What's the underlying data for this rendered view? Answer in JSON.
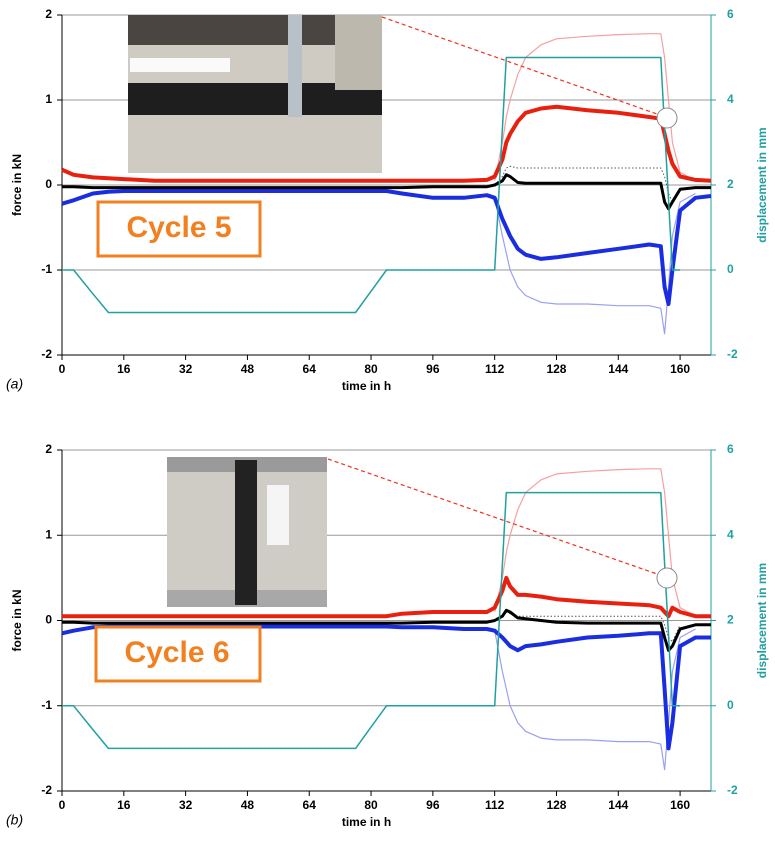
{
  "chart_data": [
    {
      "type": "line",
      "panel_label": "(a)",
      "annotation": "Cycle 5",
      "xlabel": "time in h",
      "ylabel": "force in kN",
      "y2label": "displacement in mm",
      "xlim": [
        0,
        168
      ],
      "xticks": [
        0,
        16,
        32,
        48,
        64,
        80,
        96,
        112,
        128,
        144,
        160
      ],
      "ylim": [
        -2,
        2
      ],
      "yticks": [
        -2,
        -1,
        0,
        1,
        2
      ],
      "y2lim": [
        -2,
        6
      ],
      "y2ticks": [
        -2,
        0,
        2,
        4,
        6
      ],
      "grid": true,
      "y2color": "#20a0a0",
      "x": [
        0,
        3,
        8,
        12,
        16,
        24,
        32,
        40,
        48,
        56,
        64,
        72,
        76,
        80,
        84,
        88,
        96,
        104,
        110,
        112,
        114,
        115,
        116,
        118,
        120,
        124,
        128,
        136,
        144,
        152,
        155,
        156,
        157,
        158,
        160,
        164,
        168
      ],
      "series": [
        {
          "color": "#f4a0a0",
          "linewidth": 1.2,
          "values": [
            null,
            null,
            null,
            null,
            null,
            null,
            null,
            null,
            null,
            null,
            null,
            null,
            null,
            null,
            null,
            null,
            null,
            null,
            null,
            0.05,
            0.5,
            0.8,
            1.0,
            1.3,
            1.5,
            1.65,
            1.72,
            1.75,
            1.77,
            1.78,
            1.78,
            1.5,
            1.0,
            0.5,
            0.15,
            0.05,
            null
          ]
        },
        {
          "color": "#9aa0f0",
          "linewidth": 1.2,
          "values": [
            null,
            null,
            null,
            null,
            null,
            null,
            null,
            null,
            null,
            null,
            null,
            null,
            null,
            null,
            null,
            null,
            null,
            null,
            null,
            -0.15,
            -0.6,
            -0.8,
            -1.0,
            -1.2,
            -1.3,
            -1.38,
            -1.4,
            -1.4,
            -1.42,
            -1.42,
            -1.45,
            -1.75,
            -1.2,
            -0.6,
            -0.2,
            -0.1,
            null
          ]
        },
        {
          "color": "#555555",
          "linewidth": 1,
          "linestyle": "dotted",
          "values": [
            null,
            null,
            null,
            null,
            null,
            null,
            null,
            null,
            null,
            null,
            null,
            null,
            null,
            null,
            null,
            null,
            null,
            null,
            null,
            0.0,
            0.1,
            0.2,
            0.22,
            0.2,
            0.2,
            0.2,
            0.2,
            0.2,
            0.2,
            0.2,
            0.2,
            0.1,
            -0.1,
            -0.2,
            -0.05,
            null,
            null
          ]
        },
        {
          "color": "#e82010",
          "linewidth": 4,
          "values": [
            0.18,
            0.12,
            0.09,
            0.08,
            0.07,
            0.05,
            0.05,
            0.05,
            0.05,
            0.05,
            0.05,
            0.05,
            0.05,
            0.05,
            0.05,
            0.05,
            0.05,
            0.05,
            0.06,
            0.1,
            0.3,
            0.5,
            0.6,
            0.75,
            0.85,
            0.9,
            0.92,
            0.88,
            0.85,
            0.8,
            0.78,
            0.6,
            0.4,
            0.25,
            0.1,
            0.06,
            0.05
          ]
        },
        {
          "color": "#1a2ee0",
          "linewidth": 4,
          "values": [
            -0.22,
            -0.18,
            -0.1,
            -0.08,
            -0.07,
            -0.07,
            -0.07,
            -0.07,
            -0.07,
            -0.07,
            -0.07,
            -0.07,
            -0.07,
            -0.07,
            -0.07,
            -0.1,
            -0.15,
            -0.15,
            -0.12,
            -0.15,
            -0.4,
            -0.5,
            -0.6,
            -0.75,
            -0.82,
            -0.87,
            -0.85,
            -0.8,
            -0.75,
            -0.7,
            -0.72,
            -1.2,
            -1.4,
            -1.0,
            -0.3,
            -0.15,
            -0.13
          ]
        },
        {
          "color": "#000000",
          "linewidth": 3,
          "values": [
            -0.02,
            -0.02,
            -0.03,
            -0.03,
            -0.03,
            -0.03,
            -0.03,
            -0.03,
            -0.03,
            -0.03,
            -0.03,
            -0.03,
            -0.03,
            -0.03,
            -0.03,
            -0.03,
            -0.02,
            -0.02,
            -0.02,
            0.0,
            0.05,
            0.12,
            0.1,
            0.03,
            0.02,
            0.02,
            0.02,
            0.02,
            0.02,
            0.02,
            0.02,
            -0.2,
            -0.28,
            -0.2,
            -0.05,
            -0.03,
            -0.03
          ]
        },
        {
          "color": "#20a0a0",
          "linewidth": 1.5,
          "axis": "y2",
          "values": [
            0,
            0,
            -0.56,
            -1,
            -1,
            -1,
            -1,
            -1,
            -1,
            -1,
            -1,
            -1,
            -1,
            -0.5,
            0,
            0,
            0,
            0,
            0,
            0,
            3.33,
            5,
            5,
            5,
            5,
            5,
            5,
            5,
            5,
            5,
            5,
            3.33,
            1.67,
            0,
            0,
            null,
            null
          ]
        }
      ]
    },
    {
      "type": "line",
      "panel_label": "(b)",
      "annotation": "Cycle 6",
      "xlabel": "time in h",
      "ylabel": "force in kN",
      "y2label": "displacement in mm",
      "xlim": [
        0,
        168
      ],
      "xticks": [
        0,
        16,
        32,
        48,
        64,
        80,
        96,
        112,
        128,
        144,
        160
      ],
      "ylim": [
        -2,
        2
      ],
      "yticks": [
        -2,
        -1,
        0,
        1,
        2
      ],
      "y2lim": [
        -2,
        6
      ],
      "y2ticks": [
        -2,
        0,
        2,
        4,
        6
      ],
      "grid": true,
      "y2color": "#20a0a0",
      "x": [
        0,
        3,
        8,
        12,
        16,
        24,
        32,
        40,
        48,
        56,
        64,
        72,
        76,
        80,
        84,
        88,
        96,
        104,
        110,
        112,
        114,
        115,
        116,
        118,
        120,
        124,
        128,
        136,
        144,
        152,
        155,
        156,
        157,
        158,
        160,
        164,
        168
      ],
      "series": [
        {
          "color": "#f4a0a0",
          "linewidth": 1.2,
          "values": [
            null,
            null,
            null,
            null,
            null,
            null,
            null,
            null,
            null,
            null,
            null,
            null,
            null,
            null,
            null,
            null,
            null,
            null,
            null,
            0.1,
            0.5,
            0.8,
            1.0,
            1.3,
            1.5,
            1.65,
            1.72,
            1.75,
            1.77,
            1.78,
            1.78,
            1.5,
            1.0,
            0.5,
            0.15,
            0.05,
            null
          ]
        },
        {
          "color": "#9aa0f0",
          "linewidth": 1.2,
          "values": [
            null,
            null,
            null,
            null,
            null,
            null,
            null,
            null,
            null,
            null,
            null,
            null,
            null,
            null,
            null,
            null,
            null,
            null,
            null,
            -0.12,
            -0.6,
            -0.8,
            -1.0,
            -1.2,
            -1.3,
            -1.38,
            -1.4,
            -1.4,
            -1.42,
            -1.42,
            -1.45,
            -1.75,
            -1.2,
            -0.6,
            -0.2,
            -0.1,
            null
          ]
        },
        {
          "color": "#555555",
          "linewidth": 1,
          "linestyle": "dotted",
          "values": [
            null,
            null,
            null,
            null,
            null,
            null,
            null,
            null,
            null,
            null,
            null,
            null,
            null,
            null,
            null,
            null,
            null,
            null,
            null,
            0.0,
            0.05,
            0.1,
            0.08,
            0.05,
            0.05,
            0.05,
            0.05,
            0.05,
            0.05,
            0.05,
            0.05,
            -0.05,
            -0.2,
            -0.25,
            -0.05,
            null,
            null
          ]
        },
        {
          "color": "#e82010",
          "linewidth": 4,
          "values": [
            0.05,
            0.05,
            0.05,
            0.05,
            0.05,
            0.05,
            0.05,
            0.05,
            0.05,
            0.05,
            0.05,
            0.05,
            0.05,
            0.05,
            0.05,
            0.08,
            0.1,
            0.1,
            0.1,
            0.15,
            0.35,
            0.5,
            0.4,
            0.3,
            0.3,
            0.28,
            0.25,
            0.22,
            0.2,
            0.18,
            0.15,
            0.1,
            0.05,
            0.15,
            0.1,
            0.05,
            0.05
          ]
        },
        {
          "color": "#1a2ee0",
          "linewidth": 4,
          "values": [
            -0.15,
            -0.12,
            -0.08,
            -0.07,
            -0.07,
            -0.07,
            -0.07,
            -0.07,
            -0.07,
            -0.07,
            -0.07,
            -0.07,
            -0.07,
            -0.07,
            -0.07,
            -0.08,
            -0.08,
            -0.1,
            -0.1,
            -0.12,
            -0.2,
            -0.25,
            -0.3,
            -0.35,
            -0.3,
            -0.28,
            -0.25,
            -0.2,
            -0.18,
            -0.15,
            -0.15,
            -0.8,
            -1.5,
            -1.2,
            -0.3,
            -0.2,
            -0.2
          ]
        },
        {
          "color": "#000000",
          "linewidth": 3,
          "values": [
            -0.02,
            -0.02,
            -0.03,
            -0.03,
            -0.03,
            -0.03,
            -0.03,
            -0.03,
            -0.03,
            -0.03,
            -0.03,
            -0.03,
            -0.03,
            -0.03,
            -0.03,
            -0.03,
            -0.02,
            -0.02,
            -0.02,
            0.0,
            0.05,
            0.12,
            0.1,
            0.03,
            0.02,
            0.0,
            -0.02,
            -0.03,
            -0.03,
            -0.03,
            -0.03,
            -0.2,
            -0.35,
            -0.3,
            -0.1,
            -0.05,
            -0.05
          ]
        },
        {
          "color": "#20a0a0",
          "linewidth": 1.5,
          "axis": "y2",
          "values": [
            0,
            0,
            -0.56,
            -1,
            -1,
            -1,
            -1,
            -1,
            -1,
            -1,
            -1,
            -1,
            -1,
            -0.5,
            0,
            0,
            0,
            0,
            0,
            0,
            3.33,
            5,
            5,
            5,
            5,
            5,
            5,
            5,
            5,
            5,
            5,
            3.33,
            1.67,
            0,
            0,
            null,
            null
          ]
        }
      ]
    }
  ]
}
